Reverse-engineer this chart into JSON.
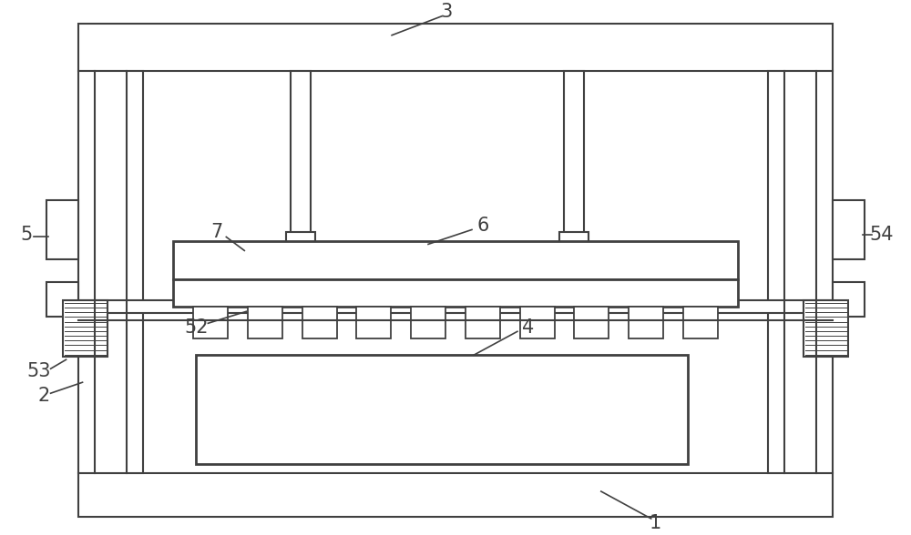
{
  "bg_color": "#ffffff",
  "line_color": "#404040",
  "fig_width": 10.0,
  "fig_height": 5.88,
  "label_fontsize": 15
}
